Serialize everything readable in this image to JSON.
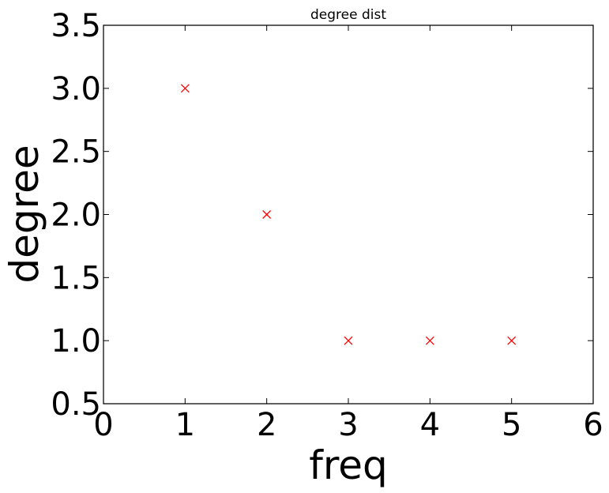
{
  "chart_data": {
    "type": "scatter",
    "title": "degree dist",
    "xlabel": "freq",
    "ylabel": "degree",
    "xlim": [
      0,
      6
    ],
    "ylim": [
      0.5,
      3.5
    ],
    "xticks": [
      "0",
      "1",
      "2",
      "3",
      "4",
      "5",
      "6"
    ],
    "yticks": [
      "0.5",
      "1.0",
      "1.5",
      "2.0",
      "2.5",
      "3.0",
      "3.5"
    ],
    "grid": false,
    "legend": "none",
    "series": [
      {
        "marker": "x",
        "color": "#ff0000",
        "points": [
          {
            "x": 1,
            "y": 3.0
          },
          {
            "x": 2,
            "y": 2.0
          },
          {
            "x": 3,
            "y": 1.0
          },
          {
            "x": 4,
            "y": 1.0
          },
          {
            "x": 5,
            "y": 1.0
          }
        ]
      }
    ]
  }
}
